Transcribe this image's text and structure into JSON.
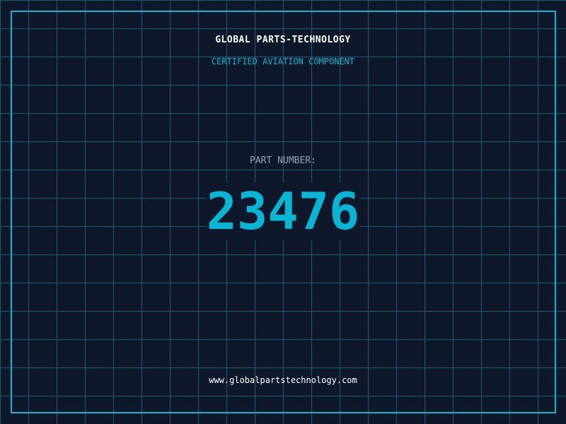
{
  "header": {
    "title": "GLOBAL PARTS-TECHNOLOGY",
    "subtitle": "CERTIFIED AVIATION COMPONENT"
  },
  "part": {
    "label": "PART NUMBER:",
    "number": "23476"
  },
  "footer": {
    "url": "www.globalpartstechnology.com"
  },
  "colors": {
    "background": "#0f172a",
    "accent": "#06b6d4",
    "grid": "#155e75",
    "label": "#94a3b8"
  }
}
